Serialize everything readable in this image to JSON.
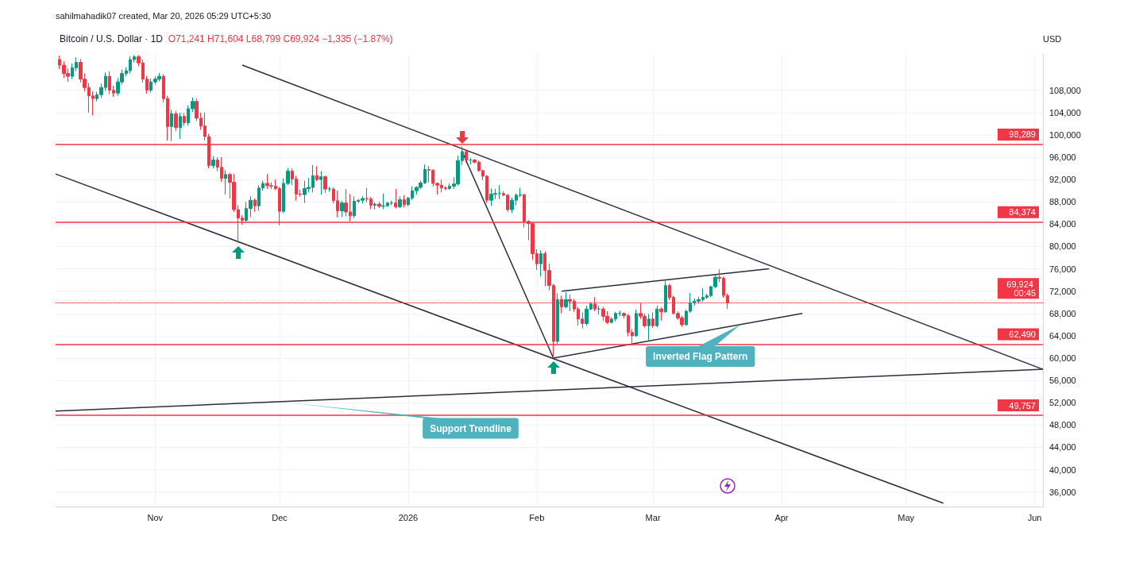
{
  "chart_data": {
    "type": "candlestick",
    "title": "Bitcoin / U.S. Dollar · 1D",
    "subtitle": "O71,241 H71,604 L68,799 C69,924 −1,335 (−1.87%)",
    "ylabel": "USD",
    "annotations": [
      "sahilmahadik07 created, Mar 20, 2026 05:29 UTC+5:30",
      {
        "text": "Inverted Flag Pattern",
        "x": "2026-03-22",
        "y": 66000
      },
      {
        "text": "Support Trendline",
        "x": "2025-12-03",
        "y": 52100
      }
    ],
    "x": [
      "2025-10-09",
      "2025-10-10",
      "2025-10-11",
      "2025-10-12",
      "2025-10-13",
      "2025-10-14",
      "2025-10-15",
      "2025-10-16",
      "2025-10-17",
      "2025-10-18",
      "2025-10-19",
      "2025-10-20",
      "2025-10-21",
      "2025-10-22",
      "2025-10-23",
      "2025-10-24",
      "2025-10-25",
      "2025-10-26",
      "2025-10-27",
      "2025-10-28",
      "2025-10-29",
      "2025-10-30",
      "2025-10-31",
      "2025-11-01",
      "2025-11-02",
      "2025-11-03",
      "2025-11-04",
      "2025-11-05",
      "2025-11-06",
      "2025-11-07",
      "2025-11-08",
      "2025-11-09",
      "2025-11-10",
      "2025-11-11",
      "2025-11-12",
      "2025-11-13",
      "2025-11-14",
      "2025-11-15",
      "2025-11-16",
      "2025-11-17",
      "2025-11-18",
      "2025-11-19",
      "2025-11-20",
      "2025-11-21",
      "2025-11-22",
      "2025-11-23",
      "2025-11-24",
      "2025-11-25",
      "2025-11-26",
      "2025-11-27",
      "2025-11-28",
      "2025-11-29",
      "2025-11-30",
      "2025-12-01",
      "2025-12-02",
      "2025-12-03",
      "2025-12-04",
      "2025-12-05",
      "2025-12-06",
      "2025-12-07",
      "2025-12-08",
      "2025-12-09",
      "2025-12-10",
      "2025-12-11",
      "2025-12-12",
      "2025-12-13",
      "2025-12-14",
      "2025-12-15",
      "2025-12-16",
      "2025-12-17",
      "2025-12-18",
      "2025-12-19",
      "2025-12-20",
      "2025-12-21",
      "2025-12-22",
      "2025-12-23",
      "2025-12-24",
      "2025-12-25",
      "2025-12-26",
      "2025-12-27",
      "2025-12-28",
      "2025-12-29",
      "2025-12-30",
      "2025-12-31",
      "2026-01-01",
      "2026-01-02",
      "2026-01-03",
      "2026-01-04",
      "2026-01-05",
      "2026-01-06",
      "2026-01-07",
      "2026-01-08",
      "2026-01-09",
      "2026-01-10",
      "2026-01-11",
      "2026-01-12",
      "2026-01-13",
      "2026-01-14",
      "2026-01-15",
      "2026-01-16",
      "2026-01-17",
      "2026-01-18",
      "2026-01-19",
      "2026-01-20",
      "2026-01-21",
      "2026-01-22",
      "2026-01-23",
      "2026-01-24",
      "2026-01-25",
      "2026-01-26",
      "2026-01-27",
      "2026-01-28",
      "2026-01-29",
      "2026-01-30",
      "2026-01-31",
      "2026-02-01",
      "2026-02-02",
      "2026-02-03",
      "2026-02-04",
      "2026-02-05",
      "2026-02-06",
      "2026-02-07",
      "2026-02-08",
      "2026-02-09",
      "2026-02-10",
      "2026-02-11",
      "2026-02-12",
      "2026-02-13",
      "2026-02-14",
      "2026-02-15",
      "2026-02-16",
      "2026-02-17",
      "2026-02-18",
      "2026-02-19",
      "2026-02-20",
      "2026-02-21",
      "2026-02-22",
      "2026-02-23",
      "2026-02-24",
      "2026-02-25",
      "2026-02-26",
      "2026-02-27",
      "2026-02-28",
      "2026-03-01",
      "2026-03-02",
      "2026-03-03",
      "2026-03-04",
      "2026-03-05",
      "2026-03-06",
      "2026-03-07",
      "2026-03-08",
      "2026-03-09",
      "2026-03-10",
      "2026-03-11",
      "2026-03-12",
      "2026-03-13",
      "2026-03-14",
      "2026-03-15",
      "2026-03-16",
      "2026-03-17",
      "2026-03-18",
      "2026-03-19"
    ],
    "ohlc": [
      [
        113500,
        114200,
        111800,
        112500
      ],
      [
        112500,
        113200,
        110200,
        111000
      ],
      [
        111000,
        111900,
        109500,
        110500
      ],
      [
        110500,
        112800,
        110000,
        112000
      ],
      [
        112000,
        113900,
        111400,
        113000
      ],
      [
        113000,
        113600,
        109400,
        110000
      ],
      [
        110000,
        111000,
        107800,
        108500
      ],
      [
        108500,
        109300,
        104000,
        107000
      ],
      [
        107000,
        107800,
        103500,
        106500
      ],
      [
        106500,
        107700,
        106000,
        107200
      ],
      [
        107200,
        109200,
        106600,
        108500
      ],
      [
        108500,
        111200,
        107900,
        110500
      ],
      [
        110500,
        111400,
        107300,
        108000
      ],
      [
        108000,
        108800,
        106800,
        107500
      ],
      [
        107500,
        110200,
        107000,
        109500
      ],
      [
        109500,
        111700,
        109000,
        111000
      ],
      [
        111000,
        112100,
        110500,
        111500
      ],
      [
        111500,
        114100,
        111000,
        113500
      ],
      [
        113500,
        114300,
        113000,
        114000
      ],
      [
        114000,
        114300,
        112300,
        112900
      ],
      [
        112900,
        113500,
        109400,
        110000
      ],
      [
        110000,
        110600,
        107400,
        108000
      ],
      [
        108000,
        110100,
        107600,
        109500
      ],
      [
        109500,
        110500,
        109000,
        110000
      ],
      [
        110000,
        111100,
        109600,
        110500
      ],
      [
        110500,
        110900,
        105800,
        106500
      ],
      [
        106500,
        107000,
        99000,
        101500
      ],
      [
        101500,
        104500,
        98900,
        103800
      ],
      [
        103800,
        104300,
        100700,
        101300
      ],
      [
        101300,
        104000,
        99300,
        103300
      ],
      [
        103300,
        103900,
        101600,
        102200
      ],
      [
        102200,
        105300,
        101700,
        104700
      ],
      [
        104700,
        106700,
        104100,
        106000
      ],
      [
        106000,
        106500,
        102500,
        103000
      ],
      [
        103000,
        104000,
        100900,
        101600
      ],
      [
        101600,
        104000,
        99000,
        99700
      ],
      [
        99700,
        100200,
        94000,
        94500
      ],
      [
        94500,
        96200,
        94000,
        95500
      ],
      [
        95500,
        96000,
        93500,
        94200
      ],
      [
        94200,
        96000,
        91600,
        92200
      ],
      [
        92200,
        93700,
        89300,
        92900
      ],
      [
        92900,
        93200,
        88600,
        91500
      ],
      [
        91500,
        93000,
        86200,
        86600
      ],
      [
        86600,
        87400,
        80600,
        85100
      ],
      [
        85100,
        85600,
        83900,
        84700
      ],
      [
        84700,
        88000,
        84300,
        86800
      ],
      [
        86800,
        89000,
        85300,
        88300
      ],
      [
        88300,
        88600,
        86200,
        87300
      ],
      [
        87300,
        91000,
        86400,
        90500
      ],
      [
        90500,
        91800,
        90000,
        91300
      ],
      [
        91300,
        93000,
        90300,
        90900
      ],
      [
        90900,
        91500,
        90300,
        90800
      ],
      [
        90800,
        92000,
        90100,
        90400
      ],
      [
        90400,
        90700,
        83800,
        86300
      ],
      [
        86300,
        92200,
        86000,
        91300
      ],
      [
        91300,
        94100,
        91000,
        93500
      ],
      [
        93500,
        94000,
        91000,
        92100
      ],
      [
        92100,
        92700,
        88200,
        89400
      ],
      [
        89400,
        90200,
        88900,
        89300
      ],
      [
        89300,
        91800,
        87800,
        90400
      ],
      [
        90400,
        92300,
        89700,
        90600
      ],
      [
        90600,
        94600,
        89700,
        92700
      ],
      [
        92700,
        94400,
        91700,
        92000
      ],
      [
        92000,
        93500,
        89300,
        92500
      ],
      [
        92500,
        92700,
        89600,
        90300
      ],
      [
        90300,
        90700,
        89800,
        90300
      ],
      [
        90300,
        90600,
        87700,
        88200
      ],
      [
        88200,
        90000,
        85200,
        86400
      ],
      [
        86400,
        88200,
        85300,
        87800
      ],
      [
        87800,
        90300,
        85400,
        86200
      ],
      [
        86200,
        89400,
        84500,
        85500
      ],
      [
        85500,
        89000,
        85100,
        88100
      ],
      [
        88100,
        88500,
        87800,
        88300
      ],
      [
        88300,
        89000,
        87700,
        88600
      ],
      [
        88600,
        90500,
        87900,
        88500
      ],
      [
        88500,
        88900,
        86700,
        87400
      ],
      [
        87400,
        87900,
        86600,
        87600
      ],
      [
        87600,
        88000,
        86900,
        87200
      ],
      [
        87200,
        89500,
        86700,
        87300
      ],
      [
        87300,
        88000,
        87100,
        87800
      ],
      [
        87800,
        88200,
        87400,
        87800
      ],
      [
        87800,
        90300,
        86800,
        87100
      ],
      [
        87100,
        89000,
        86900,
        88400
      ],
      [
        88400,
        89200,
        87000,
        87500
      ],
      [
        87500,
        88900,
        87200,
        88700
      ],
      [
        88700,
        90800,
        88300,
        90000
      ],
      [
        90000,
        90800,
        89300,
        90600
      ],
      [
        90600,
        91800,
        90300,
        91400
      ],
      [
        91400,
        94700,
        91200,
        93800
      ],
      [
        93800,
        94400,
        91500,
        93700
      ],
      [
        93700,
        93800,
        90700,
        91300
      ],
      [
        91300,
        91500,
        89300,
        91000
      ],
      [
        91000,
        92000,
        89700,
        90500
      ],
      [
        90500,
        90800,
        90100,
        90400
      ],
      [
        90400,
        91300,
        90200,
        90800
      ],
      [
        90800,
        92400,
        90300,
        91200
      ],
      [
        91200,
        96300,
        90900,
        95400
      ],
      [
        95400,
        97900,
        94600,
        97000
      ],
      [
        97000,
        97400,
        95100,
        95500
      ],
      [
        95500,
        95900,
        94700,
        95500
      ],
      [
        95500,
        95700,
        94900,
        95100
      ],
      [
        95100,
        95400,
        93400,
        93600
      ],
      [
        93600,
        93800,
        91900,
        92600
      ],
      [
        92600,
        92800,
        87800,
        88300
      ],
      [
        88300,
        90400,
        87300,
        89400
      ],
      [
        89400,
        90300,
        88500,
        89500
      ],
      [
        89500,
        91000,
        88500,
        89500
      ],
      [
        89500,
        89900,
        89000,
        89200
      ],
      [
        89200,
        89400,
        86200,
        86600
      ],
      [
        86600,
        88800,
        86000,
        88300
      ],
      [
        88300,
        89500,
        87400,
        89200
      ],
      [
        89200,
        90500,
        88800,
        89300
      ],
      [
        89300,
        89400,
        83400,
        84500
      ],
      [
        84500,
        84700,
        81100,
        84100
      ],
      [
        84100,
        84300,
        77600,
        78700
      ],
      [
        78700,
        79500,
        75800,
        76900
      ],
      [
        76900,
        79300,
        74600,
        78700
      ],
      [
        78700,
        79100,
        72900,
        75700
      ],
      [
        75700,
        76900,
        72200,
        73000
      ],
      [
        73000,
        73300,
        60000,
        63000
      ],
      [
        63000,
        71600,
        62500,
        70500
      ],
      [
        70500,
        71200,
        68000,
        69200
      ],
      [
        69200,
        71800,
        68900,
        70500
      ],
      [
        70500,
        71400,
        68400,
        70200
      ],
      [
        70200,
        70600,
        68300,
        68800
      ],
      [
        68800,
        69200,
        65800,
        67000
      ],
      [
        67000,
        68200,
        65300,
        66200
      ],
      [
        66200,
        69400,
        65800,
        68800
      ],
      [
        68800,
        70000,
        68600,
        69700
      ],
      [
        69700,
        70900,
        68400,
        68800
      ],
      [
        68800,
        69400,
        67800,
        68800
      ],
      [
        68800,
        69200,
        66700,
        67500
      ],
      [
        67500,
        68400,
        66100,
        66400
      ],
      [
        66400,
        67300,
        66200,
        67000
      ],
      [
        67000,
        68300,
        66600,
        68000
      ],
      [
        68000,
        68500,
        67500,
        68000
      ],
      [
        68000,
        68200,
        67100,
        67600
      ],
      [
        67600,
        67900,
        63900,
        64600
      ],
      [
        64600,
        65200,
        62700,
        64000
      ],
      [
        64000,
        68700,
        63800,
        68000
      ],
      [
        68000,
        69800,
        67000,
        67500
      ],
      [
        67500,
        68000,
        65500,
        65800
      ],
      [
        65800,
        67900,
        63200,
        67000
      ],
      [
        67000,
        68200,
        65400,
        65800
      ],
      [
        65800,
        69400,
        65500,
        68800
      ],
      [
        68800,
        69100,
        66700,
        68300
      ],
      [
        68300,
        73900,
        68100,
        73000
      ],
      [
        73000,
        73300,
        70400,
        70900
      ],
      [
        70900,
        71200,
        67800,
        68000
      ],
      [
        68000,
        68400,
        66800,
        67200
      ],
      [
        67200,
        67600,
        65600,
        66000
      ],
      [
        66000,
        68700,
        65800,
        68400
      ],
      [
        68400,
        71700,
        68100,
        69900
      ],
      [
        69900,
        70700,
        69400,
        70200
      ],
      [
        70200,
        71000,
        69800,
        70500
      ],
      [
        70500,
        72500,
        70100,
        70900
      ],
      [
        70900,
        71500,
        70600,
        71200
      ],
      [
        71200,
        73000,
        70900,
        72800
      ],
      [
        72800,
        74800,
        72500,
        74500
      ],
      [
        74500,
        75900,
        73600,
        74300
      ],
      [
        74300,
        74600,
        70800,
        71241
      ],
      [
        71241,
        71604,
        68799,
        69924
      ]
    ],
    "series": [
      {
        "type": "line",
        "color": "#2a2e39",
        "x": [
          "2025-11-22",
          "2026-06-03"
        ],
        "values": [
          112500,
          58000
        ]
      },
      {
        "type": "line",
        "color": "#2a2e39",
        "x": [
          "2025-10-08",
          "2026-05-10"
        ],
        "values": [
          93000,
          34000
        ]
      },
      {
        "type": "line",
        "color": "#2a2e39",
        "x": [
          "2025-10-08",
          "2026-06-03"
        ],
        "values": [
          50500,
          58000
        ]
      },
      {
        "type": "line",
        "color": "#2a2e39",
        "x": [
          "2026-02-07",
          "2026-03-29"
        ],
        "values": [
          72000,
          76000
        ]
      },
      {
        "type": "line",
        "color": "#2a2e39",
        "x": [
          "2026-02-05",
          "2026-04-06"
        ],
        "values": [
          60000,
          68000
        ]
      },
      {
        "type": "line",
        "color": "#2a2e39",
        "x": [
          "2026-01-14",
          "2026-02-05"
        ],
        "values": [
          97000,
          60000
        ]
      }
    ],
    "ref_lines": [
      {
        "axis": "y",
        "value": 98289,
        "label": "98,289",
        "color": "#f23645"
      },
      {
        "axis": "y",
        "value": 84374,
        "label": "84,374",
        "color": "#f23645"
      },
      {
        "axis": "y",
        "value": 62490,
        "label": "62,490",
        "color": "#f23645"
      },
      {
        "axis": "y",
        "value": 49757,
        "label": "49,757",
        "color": "#f23645"
      },
      {
        "axis": "y",
        "value": 69924,
        "label": "69,924 00:45",
        "color": "#f23645",
        "line_style": "dotted"
      }
    ],
    "xlim": [
      "2025-10-08",
      "2026-06-03"
    ],
    "xticks": [
      {
        "value": "2025-11-01",
        "label": "Nov"
      },
      {
        "value": "2025-12-01",
        "label": "Dec"
      },
      {
        "value": "2026-01-01",
        "label": "2026"
      },
      {
        "value": "2026-02-01",
        "label": "Feb"
      },
      {
        "value": "2026-03-01",
        "label": "Mar"
      },
      {
        "value": "2026-04-01",
        "label": "Apr"
      },
      {
        "value": "2026-05-01",
        "label": "May"
      },
      {
        "value": "2026-06-01",
        "label": "Jun"
      }
    ],
    "ylim": [
      33400,
      114500
    ],
    "yticks": [
      {
        "value": 36000,
        "label": "36,000"
      },
      {
        "value": 40000,
        "label": "40,000"
      },
      {
        "value": 44000,
        "label": "44,000"
      },
      {
        "value": 48000,
        "label": "48,000"
      },
      {
        "value": 52000,
        "label": "52,000"
      },
      {
        "value": 56000,
        "label": "56,000"
      },
      {
        "value": 60000,
        "label": "60,000"
      },
      {
        "value": 64000,
        "label": "64,000"
      },
      {
        "value": 68000,
        "label": "68,000"
      },
      {
        "value": 72000,
        "label": "72,000"
      },
      {
        "value": 76000,
        "label": "76,000"
      },
      {
        "value": 80000,
        "label": "80,000"
      },
      {
        "value": 84000,
        "label": "84,000"
      },
      {
        "value": 88000,
        "label": "88,000"
      },
      {
        "value": 92000,
        "label": "92,000"
      },
      {
        "value": 96000,
        "label": "96,000"
      },
      {
        "value": 100000,
        "label": "100,000"
      },
      {
        "value": 104000,
        "label": "104,000"
      },
      {
        "value": 108000,
        "label": "108,000"
      }
    ],
    "grid": true
  }
}
